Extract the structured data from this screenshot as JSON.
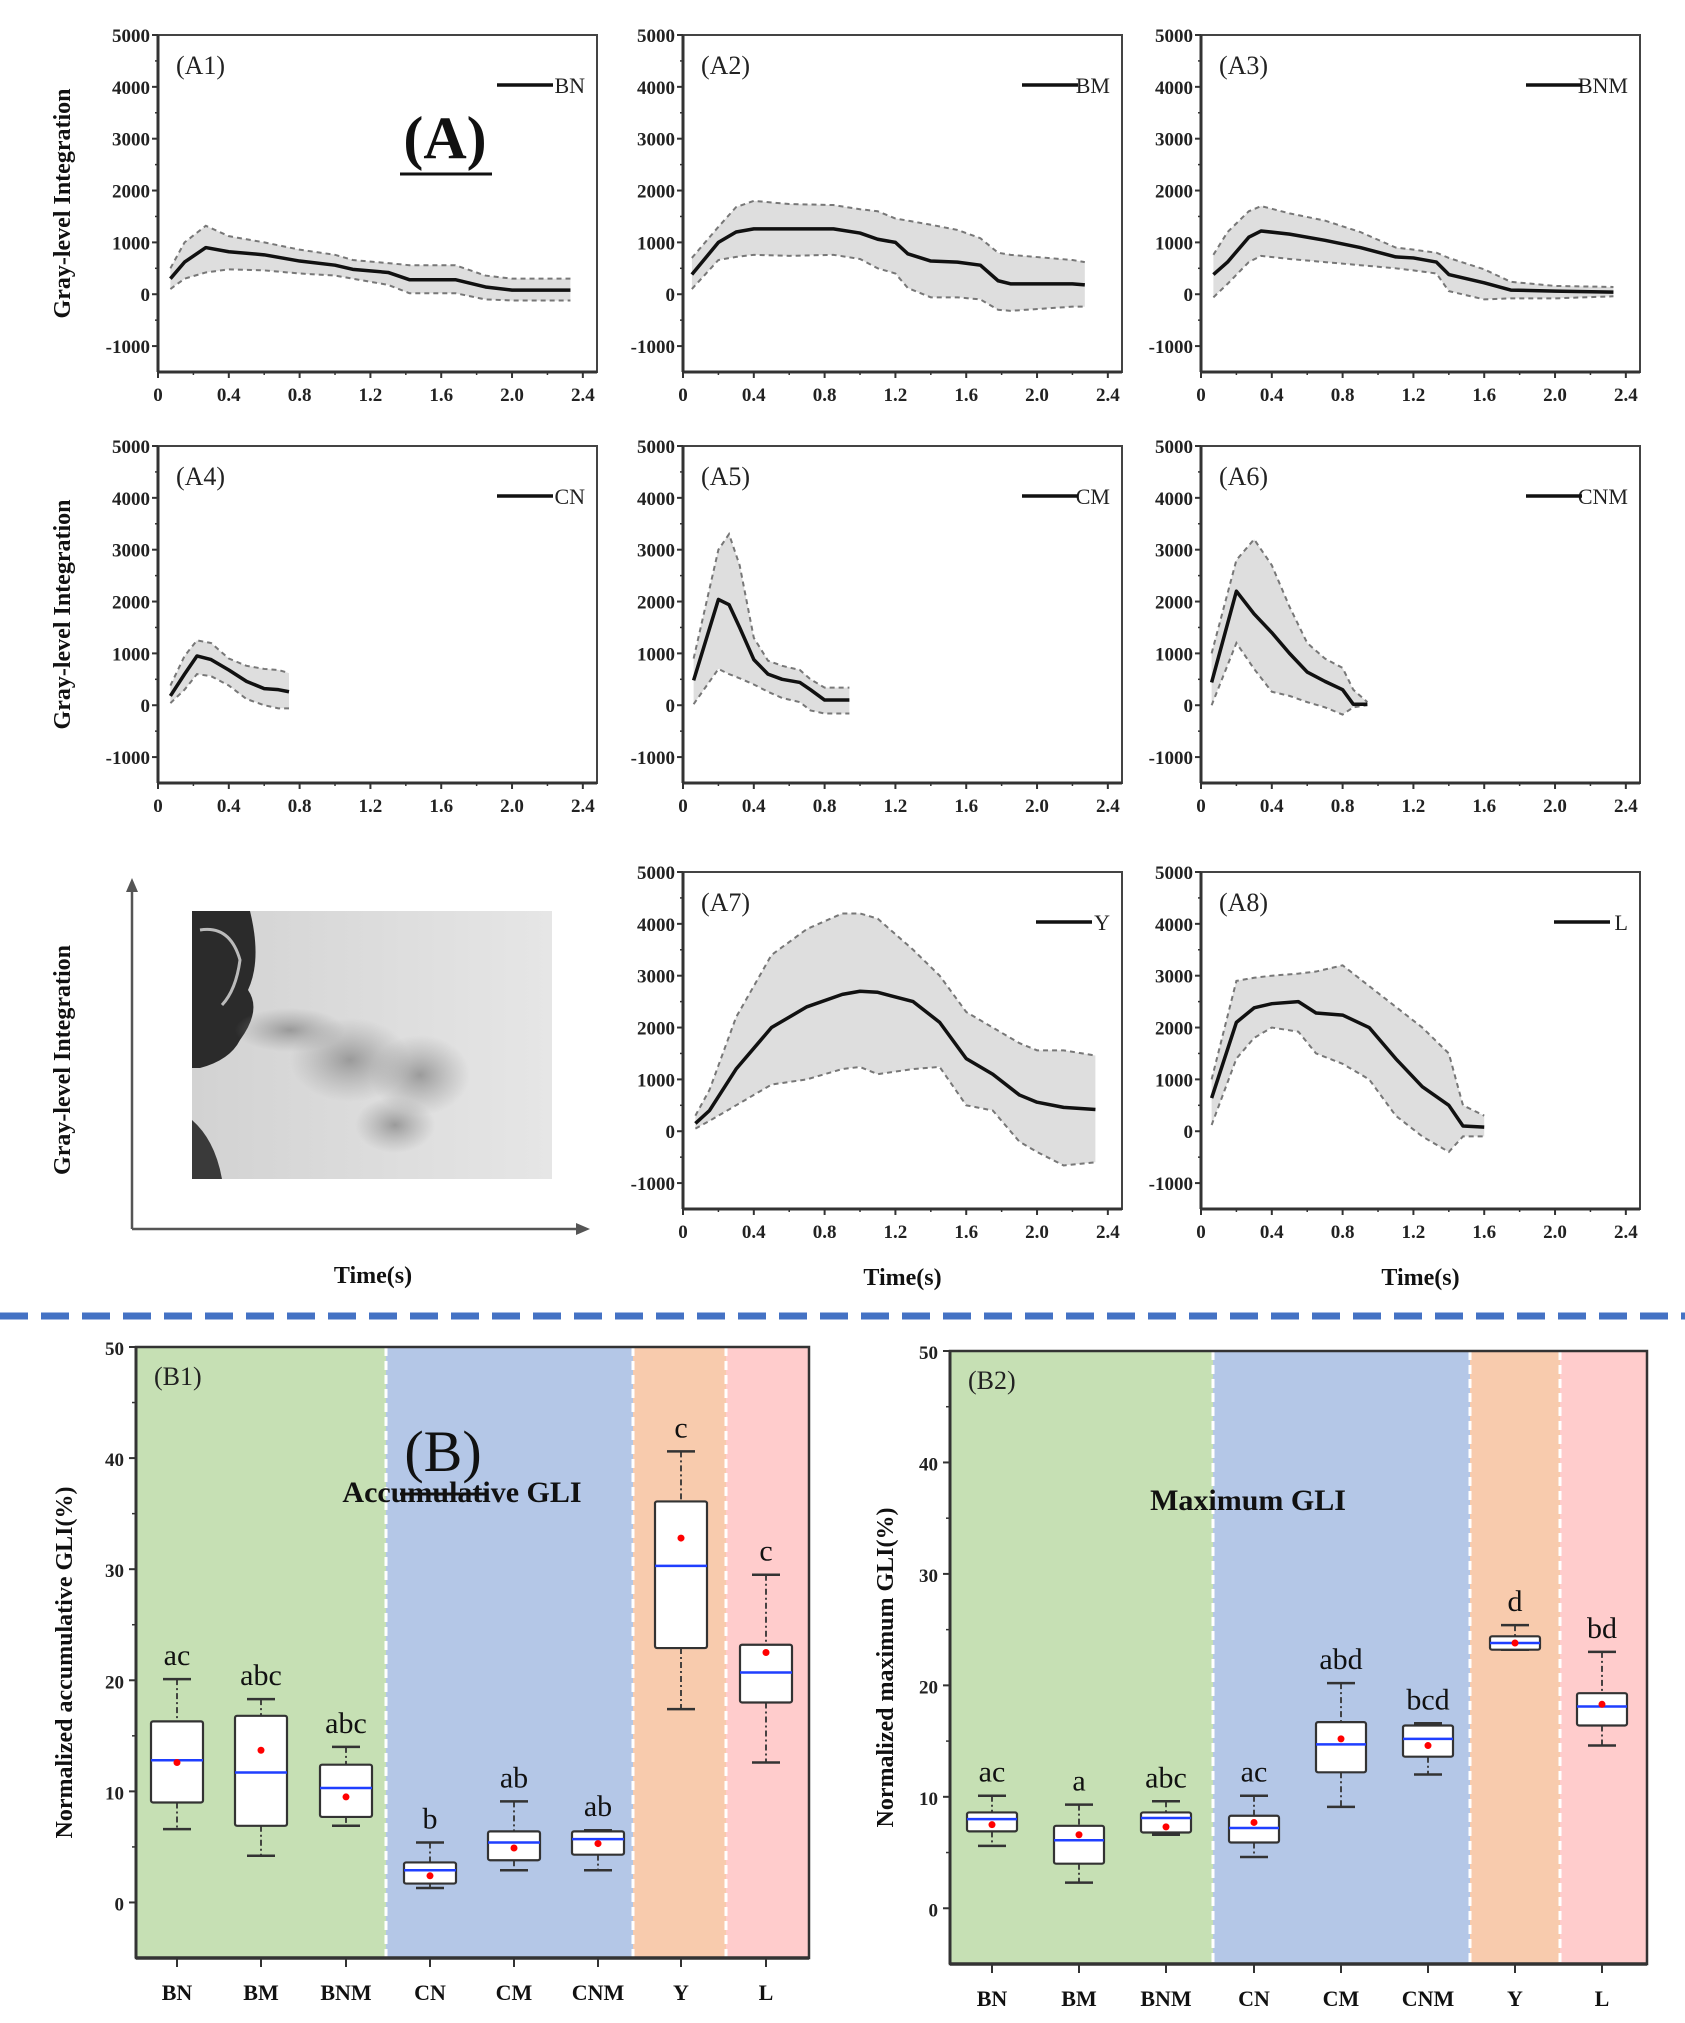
{
  "section_labels": {
    "a": "(A)",
    "b": "(B)"
  },
  "common": {
    "ylabel_a": "Gray-level Integration",
    "xlabel_a": "Time(s)",
    "yticks_a": [
      "5000",
      "4000",
      "3000",
      "2000",
      "1000",
      "0",
      "-1000"
    ],
    "xticks_a": [
      "0",
      "0.4",
      "0.8",
      "1.2",
      "1.6",
      "2.0",
      "2.4"
    ]
  },
  "schematic": {
    "ylabel": "Gray-level Integration",
    "xlabel": "Time(s)",
    "photo_description": "grayscale photo of a person exhaling a breath plume"
  },
  "chart_data": [
    {
      "id": "A1",
      "type": "area",
      "panel_label": "(A1)",
      "legend": "BN",
      "xlabel": "",
      "ylabel": "Gray-level Integration",
      "xlim": [
        0,
        2.48
      ],
      "ylim": [
        -1500,
        5000
      ],
      "grid": false,
      "legend_position": "top-right",
      "x": [
        0.07,
        0.15,
        0.27,
        0.4,
        0.6,
        0.8,
        1.0,
        1.1,
        1.3,
        1.42,
        1.68,
        1.85,
        2.0,
        2.33
      ],
      "mean": [
        300,
        620,
        900,
        820,
        760,
        640,
        560,
        480,
        420,
        280,
        280,
        140,
        80,
        80
      ],
      "upper": [
        500,
        1000,
        1320,
        1120,
        1000,
        860,
        760,
        660,
        600,
        560,
        560,
        360,
        300,
        300
      ],
      "lower": [
        100,
        300,
        420,
        480,
        460,
        400,
        360,
        300,
        180,
        20,
        20,
        -100,
        -120,
        -120
      ]
    },
    {
      "id": "A2",
      "type": "area",
      "panel_label": "(A2)",
      "legend": "BM",
      "xlabel": "",
      "ylabel": "",
      "xlim": [
        0,
        2.48
      ],
      "ylim": [
        -1500,
        5000
      ],
      "grid": false,
      "legend_position": "top-right",
      "x": [
        0.05,
        0.2,
        0.3,
        0.4,
        0.6,
        0.85,
        1.0,
        1.1,
        1.2,
        1.27,
        1.4,
        1.55,
        1.68,
        1.78,
        1.85,
        2.2,
        2.27
      ],
      "mean": [
        380,
        1000,
        1200,
        1260,
        1260,
        1260,
        1180,
        1060,
        1000,
        780,
        640,
        620,
        560,
        260,
        200,
        200,
        180
      ],
      "upper": [
        700,
        1300,
        1680,
        1800,
        1740,
        1720,
        1640,
        1600,
        1460,
        1420,
        1340,
        1240,
        1080,
        800,
        760,
        660,
        620
      ],
      "lower": [
        100,
        660,
        720,
        760,
        740,
        760,
        680,
        500,
        400,
        120,
        -60,
        -60,
        -100,
        -300,
        -320,
        -240,
        -240
      ]
    },
    {
      "id": "A3",
      "type": "area",
      "panel_label": "(A3)",
      "legend": "BNM",
      "xlabel": "",
      "ylabel": "",
      "xlim": [
        0,
        2.48
      ],
      "ylim": [
        -1500,
        5000
      ],
      "grid": false,
      "legend_position": "top-right",
      "x": [
        0.07,
        0.15,
        0.27,
        0.34,
        0.5,
        0.7,
        0.9,
        1.1,
        1.2,
        1.33,
        1.4,
        1.6,
        1.75,
        2.0,
        2.33
      ],
      "mean": [
        380,
        620,
        1100,
        1220,
        1160,
        1040,
        900,
        720,
        700,
        620,
        380,
        220,
        80,
        60,
        40
      ],
      "upper": [
        760,
        1200,
        1600,
        1700,
        1560,
        1420,
        1200,
        900,
        860,
        800,
        700,
        480,
        240,
        160,
        140
      ],
      "lower": [
        -60,
        200,
        620,
        740,
        680,
        620,
        560,
        500,
        460,
        400,
        60,
        -100,
        -80,
        -80,
        -40
      ]
    },
    {
      "id": "A4",
      "type": "area",
      "panel_label": "(A4)",
      "legend": "CN",
      "xlabel": "",
      "ylabel": "Gray-level Integration",
      "xlim": [
        0,
        2.48
      ],
      "ylim": [
        -1500,
        5000
      ],
      "grid": false,
      "legend_position": "top-right",
      "x": [
        0.07,
        0.15,
        0.22,
        0.3,
        0.4,
        0.5,
        0.6,
        0.68,
        0.74
      ],
      "mean": [
        180,
        600,
        950,
        880,
        680,
        460,
        320,
        300,
        260
      ],
      "upper": [
        380,
        950,
        1250,
        1200,
        900,
        760,
        700,
        680,
        620
      ],
      "lower": [
        40,
        300,
        600,
        560,
        380,
        120,
        0,
        -60,
        -60
      ]
    },
    {
      "id": "A5",
      "type": "area",
      "panel_label": "(A5)",
      "legend": "CM",
      "xlabel": "",
      "ylabel": "",
      "xlim": [
        0,
        2.48
      ],
      "ylim": [
        -1500,
        5000
      ],
      "grid": false,
      "legend_position": "top-right",
      "x": [
        0.06,
        0.2,
        0.26,
        0.32,
        0.4,
        0.48,
        0.56,
        0.66,
        0.72,
        0.8,
        0.94
      ],
      "mean": [
        480,
        2040,
        1940,
        1500,
        880,
        600,
        500,
        440,
        300,
        100,
        100
      ],
      "upper": [
        900,
        3000,
        3300,
        2700,
        1300,
        860,
        760,
        680,
        500,
        340,
        340
      ],
      "lower": [
        20,
        700,
        600,
        520,
        400,
        260,
        140,
        60,
        -100,
        -160,
        -160
      ]
    },
    {
      "id": "A6",
      "type": "area",
      "panel_label": "(A6)",
      "legend": "CNM",
      "xlabel": "",
      "ylabel": "",
      "xlim": [
        0,
        2.48
      ],
      "ylim": [
        -1500,
        5000
      ],
      "grid": false,
      "legend_position": "top-right",
      "x": [
        0.06,
        0.2,
        0.3,
        0.4,
        0.5,
        0.6,
        0.7,
        0.8,
        0.86,
        0.94
      ],
      "mean": [
        440,
        2200,
        1760,
        1400,
        1000,
        640,
        460,
        300,
        20,
        20
      ],
      "upper": [
        1000,
        2800,
        3200,
        2700,
        1900,
        1200,
        900,
        720,
        300,
        60
      ],
      "lower": [
        0,
        1200,
        700,
        260,
        180,
        60,
        -40,
        -180,
        -40,
        0
      ]
    },
    {
      "id": "A7",
      "type": "area",
      "panel_label": "(A7)",
      "legend": "Y",
      "xlabel": "Time(s)",
      "ylabel": "",
      "xlim": [
        0,
        2.48
      ],
      "ylim": [
        -1500,
        5000
      ],
      "grid": false,
      "legend_position": "top-right",
      "x": [
        0.07,
        0.15,
        0.3,
        0.5,
        0.7,
        0.9,
        1.0,
        1.1,
        1.3,
        1.45,
        1.6,
        1.75,
        1.9,
        2.0,
        2.15,
        2.33
      ],
      "mean": [
        150,
        400,
        1200,
        2000,
        2400,
        2640,
        2700,
        2680,
        2500,
        2100,
        1400,
        1100,
        700,
        560,
        460,
        420
      ],
      "upper": [
        300,
        800,
        2200,
        3400,
        3900,
        4200,
        4200,
        4100,
        3500,
        3000,
        2300,
        2000,
        1700,
        1560,
        1560,
        1460
      ],
      "lower": [
        50,
        200,
        500,
        900,
        1000,
        1200,
        1240,
        1100,
        1200,
        1240,
        500,
        400,
        -200,
        -400,
        -660,
        -600
      ]
    },
    {
      "id": "A8",
      "type": "area",
      "panel_label": "(A8)",
      "legend": "L",
      "xlabel": "Time(s)",
      "ylabel": "",
      "xlim": [
        0,
        2.48
      ],
      "ylim": [
        -1500,
        5000
      ],
      "grid": false,
      "legend_position": "top-right",
      "x": [
        0.06,
        0.2,
        0.3,
        0.4,
        0.55,
        0.65,
        0.8,
        0.95,
        1.1,
        1.25,
        1.4,
        1.48,
        1.6
      ],
      "mean": [
        640,
        2100,
        2380,
        2460,
        2500,
        2280,
        2240,
        2000,
        1400,
        860,
        500,
        100,
        80
      ],
      "upper": [
        1000,
        2900,
        2960,
        3000,
        3040,
        3080,
        3200,
        2800,
        2400,
        2000,
        1500,
        500,
        300
      ],
      "lower": [
        120,
        1400,
        1800,
        2000,
        1920,
        1500,
        1300,
        1000,
        300,
        -100,
        -400,
        -100,
        -100
      ]
    },
    {
      "id": "B1",
      "type": "box",
      "panel_label": "(B1)",
      "title": "Accumulative GLI",
      "xlabel": "",
      "ylabel": "Normalized accumulative GLI(%)",
      "ylim": [
        -5,
        50
      ],
      "yticks": [
        "50",
        "40",
        "30",
        "20",
        "10",
        "0"
      ],
      "grid": false,
      "categories": [
        "BN",
        "BM",
        "BNM",
        "CN",
        "CM",
        "CNM",
        "Y",
        "L"
      ],
      "groups": [
        {
          "name": "B",
          "members": [
            "BN",
            "BM",
            "BNM"
          ],
          "color": "#c6e0b4"
        },
        {
          "name": "C",
          "members": [
            "CN",
            "CM",
            "CNM"
          ],
          "color": "#b4c7e7"
        },
        {
          "name": "Y",
          "members": [
            "Y"
          ],
          "color": "#f8cbad"
        },
        {
          "name": "L",
          "members": [
            "L"
          ],
          "color": "#ffcccc"
        }
      ],
      "boxes": [
        {
          "cat": "BN",
          "whisker_low": 6.6,
          "q1": 9.0,
          "median": 12.8,
          "mean": 12.6,
          "q3": 16.3,
          "whisker_high": 20.1,
          "sig": "ac"
        },
        {
          "cat": "BM",
          "whisker_low": 4.2,
          "q1": 6.9,
          "median": 11.7,
          "mean": 13.7,
          "q3": 16.8,
          "whisker_high": 18.3,
          "sig": "abc"
        },
        {
          "cat": "BNM",
          "whisker_low": 6.9,
          "q1": 7.7,
          "median": 10.3,
          "mean": 9.5,
          "q3": 12.4,
          "whisker_high": 14.0,
          "sig": "abc"
        },
        {
          "cat": "CN",
          "whisker_low": 1.3,
          "q1": 1.7,
          "median": 2.9,
          "mean": 2.4,
          "q3": 3.6,
          "whisker_high": 5.4,
          "sig": "b"
        },
        {
          "cat": "CM",
          "whisker_low": 2.9,
          "q1": 3.8,
          "median": 5.4,
          "mean": 4.9,
          "q3": 6.4,
          "whisker_high": 9.1,
          "sig": "ab"
        },
        {
          "cat": "CNM",
          "whisker_low": 2.9,
          "q1": 4.3,
          "median": 5.7,
          "mean": 5.3,
          "q3": 6.4,
          "whisker_high": 6.5,
          "sig": "ab"
        },
        {
          "cat": "Y",
          "whisker_low": 17.4,
          "q1": 22.9,
          "median": 30.3,
          "mean": 32.8,
          "q3": 36.1,
          "whisker_high": 40.6,
          "sig": "c"
        },
        {
          "cat": "L",
          "whisker_low": 12.6,
          "q1": 18.0,
          "median": 20.7,
          "mean": 22.5,
          "q3": 23.2,
          "whisker_high": 29.5,
          "sig": "c"
        }
      ]
    },
    {
      "id": "B2",
      "type": "box",
      "panel_label": "(B2)",
      "title": "Maximum GLI",
      "xlabel": "",
      "ylabel": "Normalized maximum GLI(%)",
      "ylim": [
        -5,
        50
      ],
      "yticks": [
        "50",
        "40",
        "30",
        "20",
        "10",
        "0"
      ],
      "grid": false,
      "categories": [
        "BN",
        "BM",
        "BNM",
        "CN",
        "CM",
        "CNM",
        "Y",
        "L"
      ],
      "groups": [
        {
          "name": "B",
          "members": [
            "BN",
            "BM",
            "BNM"
          ],
          "color": "#c6e0b4"
        },
        {
          "name": "C",
          "members": [
            "CN",
            "CM",
            "CNM"
          ],
          "color": "#b4c7e7"
        },
        {
          "name": "Y",
          "members": [
            "Y"
          ],
          "color": "#f8cbad"
        },
        {
          "name": "L",
          "members": [
            "L"
          ],
          "color": "#ffcccc"
        }
      ],
      "boxes": [
        {
          "cat": "BN",
          "whisker_low": 5.6,
          "q1": 6.9,
          "median": 8.0,
          "mean": 7.5,
          "q3": 8.6,
          "whisker_high": 10.1,
          "sig": "ac"
        },
        {
          "cat": "BM",
          "whisker_low": 2.3,
          "q1": 4.0,
          "median": 6.1,
          "mean": 6.6,
          "q3": 7.4,
          "whisker_high": 9.3,
          "sig": "a"
        },
        {
          "cat": "BNM",
          "whisker_low": 6.6,
          "q1": 6.8,
          "median": 8.1,
          "mean": 7.3,
          "q3": 8.6,
          "whisker_high": 9.6,
          "sig": "abc"
        },
        {
          "cat": "CN",
          "whisker_low": 4.6,
          "q1": 5.9,
          "median": 7.2,
          "mean": 7.7,
          "q3": 8.3,
          "whisker_high": 10.1,
          "sig": "ac"
        },
        {
          "cat": "CM",
          "whisker_low": 9.1,
          "q1": 12.2,
          "median": 14.7,
          "mean": 15.2,
          "q3": 16.7,
          "whisker_high": 20.2,
          "sig": "abd"
        },
        {
          "cat": "CNM",
          "whisker_low": 12.0,
          "q1": 13.6,
          "median": 15.2,
          "mean": 14.6,
          "q3": 16.4,
          "whisker_high": 16.6,
          "sig": "bcd"
        },
        {
          "cat": "Y",
          "whisker_low": 23.2,
          "q1": 23.2,
          "median": 23.8,
          "mean": 23.8,
          "q3": 24.4,
          "whisker_high": 25.4,
          "sig": "d"
        },
        {
          "cat": "L",
          "whisker_low": 14.6,
          "q1": 16.4,
          "median": 18.1,
          "mean": 18.3,
          "q3": 19.3,
          "whisker_high": 23.0,
          "sig": "bd"
        }
      ]
    }
  ],
  "colors": {
    "band_fill": "#dedede",
    "band_edge": "#777777",
    "mean_line": "#111111",
    "divider": "#4472c4",
    "median": "#1f3fff",
    "mean_dot": "#ff0000"
  }
}
